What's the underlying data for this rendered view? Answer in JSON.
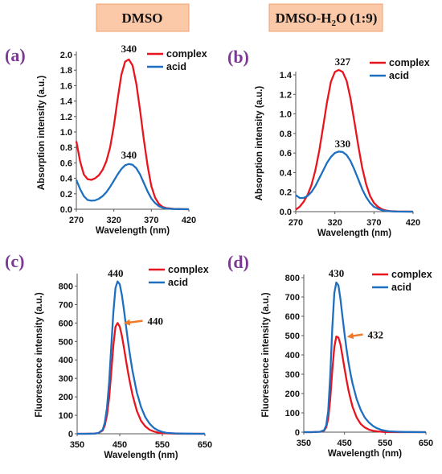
{
  "headers": [
    {
      "text": "DMSO"
    },
    {
      "main": "DMSO-H",
      "sub": "2",
      "rest": "O (1:9)"
    }
  ],
  "colors": {
    "complex": "#e8151e",
    "acid": "#1f6fc0",
    "header_bg": "#fbc8a8",
    "header_border": "#f2a072",
    "arrow": "#f07a2a",
    "panel_letter": "#7a3a92"
  },
  "chart_data": [
    {
      "panel": "(a)",
      "type": "line",
      "xlabel": "Wavelength (nm)",
      "ylabel": "Absorption intensity (a.u.)",
      "xlim": [
        270,
        420
      ],
      "ylim": [
        0,
        2.0
      ],
      "xticks": [
        270,
        320,
        370,
        420
      ],
      "yticks": [
        0.0,
        0.2,
        0.4,
        0.6,
        0.8,
        1.0,
        1.2,
        1.4,
        1.6,
        1.8,
        2.0
      ],
      "ytick_labels": [
        "0.0",
        "0.2",
        "0.4",
        "0.6",
        "0.8",
        "1.0",
        "1.2",
        "1.4",
        "1.6",
        "1.8",
        "2.0"
      ],
      "legend": "top-right",
      "series": [
        {
          "name": "complex",
          "key": "complex",
          "x": [
            270,
            275,
            280,
            285,
            290,
            295,
            300,
            305,
            310,
            315,
            320,
            325,
            330,
            335,
            340,
            345,
            350,
            355,
            360,
            365,
            370,
            375,
            380,
            385,
            390,
            395,
            400,
            405,
            410,
            420
          ],
          "y": [
            0.88,
            0.62,
            0.45,
            0.39,
            0.38,
            0.4,
            0.44,
            0.51,
            0.62,
            0.8,
            1.08,
            1.42,
            1.74,
            1.91,
            1.94,
            1.86,
            1.62,
            1.28,
            0.9,
            0.56,
            0.3,
            0.15,
            0.07,
            0.03,
            0.015,
            0.01,
            0.005,
            0.003,
            0.002,
            0.0
          ]
        },
        {
          "name": "acid",
          "key": "acid",
          "x": [
            270,
            275,
            280,
            285,
            290,
            295,
            300,
            305,
            310,
            315,
            320,
            325,
            330,
            335,
            340,
            345,
            350,
            355,
            360,
            365,
            370,
            375,
            380,
            385,
            390,
            395,
            400,
            405,
            410,
            420
          ],
          "y": [
            0.38,
            0.26,
            0.17,
            0.12,
            0.11,
            0.115,
            0.135,
            0.17,
            0.22,
            0.29,
            0.37,
            0.45,
            0.52,
            0.57,
            0.585,
            0.575,
            0.53,
            0.45,
            0.34,
            0.23,
            0.14,
            0.08,
            0.04,
            0.02,
            0.01,
            0.005,
            0.003,
            0.002,
            0.001,
            0.0
          ]
        }
      ],
      "annotations": [
        {
          "text": "340",
          "x": 340,
          "y": 2.03
        },
        {
          "text": "340",
          "x": 340,
          "y": 0.655
        }
      ]
    },
    {
      "panel": "(b)",
      "type": "line",
      "xlabel": "Wavelength (nm)",
      "ylabel": "Absorption intensity (a.u.)",
      "xlim": [
        270,
        420
      ],
      "ylim": [
        0,
        1.4
      ],
      "xticks": [
        270,
        320,
        370,
        420
      ],
      "yticks": [
        0.0,
        0.2,
        0.4,
        0.6,
        0.8,
        1.0,
        1.2,
        1.4
      ],
      "ytick_labels": [
        "0.0",
        "0.2",
        "0.4",
        "0.6",
        "0.8",
        "1.0",
        "1.2",
        "1.4"
      ],
      "legend": "top-right",
      "series": [
        {
          "name": "complex",
          "key": "complex",
          "x": [
            270,
            275,
            280,
            285,
            290,
            295,
            300,
            305,
            310,
            315,
            320,
            325,
            330,
            335,
            340,
            345,
            350,
            355,
            360,
            365,
            370,
            375,
            380,
            385,
            390,
            400,
            410,
            420
          ],
          "y": [
            0.02,
            0.05,
            0.1,
            0.17,
            0.27,
            0.42,
            0.62,
            0.87,
            1.12,
            1.33,
            1.43,
            1.45,
            1.43,
            1.34,
            1.16,
            0.92,
            0.67,
            0.45,
            0.28,
            0.16,
            0.09,
            0.05,
            0.025,
            0.012,
            0.006,
            0.002,
            0.001,
            0.0
          ]
        },
        {
          "name": "acid",
          "key": "acid",
          "x": [
            270,
            275,
            280,
            285,
            290,
            295,
            300,
            305,
            310,
            315,
            320,
            325,
            330,
            335,
            340,
            345,
            350,
            355,
            360,
            365,
            370,
            375,
            380,
            385,
            390,
            400,
            410,
            420
          ],
          "y": [
            0.17,
            0.14,
            0.14,
            0.16,
            0.2,
            0.26,
            0.34,
            0.42,
            0.5,
            0.56,
            0.6,
            0.615,
            0.61,
            0.58,
            0.52,
            0.43,
            0.33,
            0.23,
            0.15,
            0.09,
            0.05,
            0.03,
            0.015,
            0.008,
            0.004,
            0.001,
            0.0,
            0.0
          ]
        }
      ],
      "annotations": [
        {
          "text": "327",
          "x": 330,
          "y": 1.5
        },
        {
          "text": "330",
          "x": 330,
          "y": 0.66
        }
      ]
    },
    {
      "panel": "(c)",
      "type": "line",
      "xlabel": "Wavelength (nm)",
      "ylabel": "Fluorescence intensity (a.u.)",
      "xlim": [
        350,
        650
      ],
      "ylim": [
        0,
        850
      ],
      "xticks": [
        350,
        450,
        550,
        650
      ],
      "yticks": [
        0,
        100,
        200,
        300,
        400,
        500,
        600,
        700,
        800
      ],
      "ytick_labels": [
        "0",
        "100",
        "200",
        "300",
        "400",
        "500",
        "600",
        "700",
        "800"
      ],
      "legend": "top-right",
      "series": [
        {
          "name": "complex",
          "key": "complex",
          "x": [
            350,
            370,
            390,
            400,
            410,
            415,
            420,
            425,
            430,
            435,
            440,
            445,
            450,
            455,
            460,
            465,
            470,
            475,
            480,
            490,
            500,
            510,
            520,
            530,
            540,
            550,
            560,
            580,
            600,
            650
          ],
          "y": [
            0,
            0,
            1,
            4,
            18,
            45,
            100,
            195,
            330,
            480,
            580,
            600,
            580,
            530,
            465,
            395,
            325,
            265,
            210,
            125,
            70,
            40,
            22,
            12,
            6,
            3,
            2,
            1,
            0,
            0
          ]
        },
        {
          "name": "acid",
          "key": "acid",
          "x": [
            350,
            370,
            390,
            400,
            410,
            415,
            420,
            425,
            430,
            435,
            440,
            445,
            450,
            455,
            460,
            465,
            470,
            475,
            480,
            490,
            500,
            510,
            520,
            530,
            540,
            550,
            560,
            580,
            600,
            650
          ],
          "y": [
            0,
            0,
            1,
            4,
            22,
            60,
            140,
            280,
            470,
            660,
            790,
            825,
            810,
            750,
            670,
            580,
            490,
            410,
            340,
            225,
            145,
            90,
            55,
            32,
            18,
            10,
            5,
            2,
            1,
            0
          ]
        }
      ],
      "annotations": [
        {
          "text": "440",
          "x": 440,
          "y": 850,
          "arrow": false
        },
        {
          "text": "440",
          "x": 515,
          "y": 590,
          "arrow": true,
          "arrow_to": [
            463,
            600
          ]
        }
      ]
    },
    {
      "panel": "(d)",
      "type": "line",
      "xlabel": "Wavelength (nm)",
      "ylabel": "Fluorescence intensity (a.u.)",
      "xlim": [
        350,
        650
      ],
      "ylim": [
        0,
        800
      ],
      "xticks": [
        350,
        450,
        550,
        650
      ],
      "yticks": [
        0,
        100,
        200,
        300,
        400,
        500,
        600,
        700,
        800
      ],
      "ytick_labels": [
        "0",
        "100",
        "200",
        "300",
        "400",
        "500",
        "600",
        "700",
        "800"
      ],
      "legend": "top-right",
      "series": [
        {
          "name": "complex",
          "key": "complex",
          "x": [
            350,
            370,
            390,
            400,
            405,
            410,
            415,
            420,
            425,
            430,
            435,
            440,
            445,
            450,
            455,
            460,
            465,
            470,
            480,
            490,
            500,
            510,
            520,
            530,
            540,
            550,
            560,
            580,
            600,
            650
          ],
          "y": [
            0,
            0,
            2,
            8,
            25,
            70,
            170,
            320,
            440,
            495,
            490,
            455,
            395,
            330,
            270,
            215,
            170,
            130,
            75,
            42,
            24,
            13,
            7,
            4,
            2,
            1,
            0,
            0,
            0,
            0
          ]
        },
        {
          "name": "acid",
          "key": "acid",
          "x": [
            350,
            370,
            390,
            400,
            405,
            410,
            415,
            420,
            425,
            430,
            435,
            440,
            445,
            450,
            455,
            460,
            465,
            470,
            480,
            490,
            500,
            510,
            520,
            530,
            540,
            550,
            560,
            580,
            600,
            650
          ],
          "y": [
            0,
            0,
            2,
            10,
            35,
            110,
            290,
            540,
            720,
            775,
            760,
            690,
            600,
            510,
            430,
            360,
            300,
            250,
            170,
            115,
            75,
            50,
            32,
            20,
            12,
            7,
            4,
            2,
            1,
            0
          ]
        }
      ],
      "annotations": [
        {
          "text": "430",
          "x": 430,
          "y": 805,
          "arrow": false
        },
        {
          "text": "432",
          "x": 507,
          "y": 485,
          "arrow": true,
          "arrow_to": [
            460,
            495
          ]
        }
      ]
    }
  ]
}
